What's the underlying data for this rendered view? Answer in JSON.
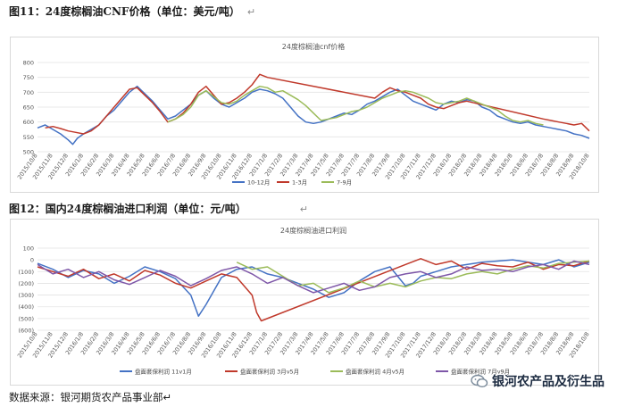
{
  "heading1": "图11：24度棕榈油CNF价格（单位：美元/吨）",
  "heading2": "图12：国内24度棕榈油进口利润（单位：元/吨）",
  "return_mark": "↵",
  "source": "数据来源：银河期货农产品事业部↵",
  "brand": "银河农产品及衍生品",
  "colors": {
    "blue": "#4472c4",
    "red": "#c0392b",
    "green": "#9bbb59",
    "purple": "#7e57a8"
  },
  "chart_data": [
    {
      "type": "line",
      "title": "24度棕榈油cnf价格",
      "ylim": [
        500,
        800
      ],
      "y_ticks": [
        500,
        550,
        600,
        650,
        700,
        750,
        800
      ],
      "x_tick_labels": [
        "2015/10/8",
        "2015/11/8",
        "2015/12/8",
        "2016/1/8",
        "2016/2/8",
        "2016/3/8",
        "2016/4/8",
        "2016/5/8",
        "2016/6/8",
        "2016/7/8",
        "2016/8/8",
        "2016/9/8",
        "2016/10/8",
        "2016/11/8",
        "2016/12/8",
        "2017/1/8",
        "2017/2/8",
        "2017/3/8",
        "2017/4/8",
        "2017/5/8",
        "2017/6/8",
        "2017/7/8",
        "2017/8/8",
        "2017/9/8",
        "2017/10/8",
        "2017/11/8",
        "2017/12/8",
        "2018/1/8",
        "2018/2/8",
        "2018/3/8",
        "2018/4/8",
        "2018/5/8",
        "2018/6/8",
        "2018/7/8",
        "2018/8/8",
        "2018/9/8",
        "2018/10/8"
      ],
      "series": [
        {
          "name": "10-12月",
          "color": "#4472c4",
          "x": [
            0,
            0.5,
            1,
            1.5,
            2,
            2.3,
            2.6,
            3,
            3.5,
            4,
            4.5,
            5,
            5.5,
            6,
            6.5,
            7,
            7.5,
            8,
            8.5,
            9,
            9.5,
            10,
            10.5,
            11,
            11.5,
            12,
            12.5,
            13,
            13.5,
            14,
            14.5,
            15,
            15.5,
            16,
            16.5,
            17,
            17.5,
            18,
            18.5,
            19,
            19.5,
            20,
            20.5,
            21,
            21.5,
            22,
            22.5,
            23,
            23.5,
            24,
            24.5,
            25,
            25.5,
            26,
            26.5,
            27,
            27.5,
            28,
            28.5,
            29,
            29.5,
            30,
            30.5,
            31,
            31.5,
            32,
            32.5,
            33,
            33.5,
            34,
            34.5,
            35,
            35.5,
            36
          ],
          "y": [
            580,
            590,
            575,
            560,
            540,
            525,
            545,
            560,
            575,
            590,
            620,
            640,
            670,
            700,
            720,
            695,
            670,
            640,
            610,
            620,
            640,
            660,
            690,
            705,
            680,
            660,
            650,
            665,
            680,
            700,
            710,
            705,
            695,
            680,
            650,
            620,
            600,
            595,
            600,
            610,
            620,
            630,
            625,
            640,
            660,
            670,
            685,
            700,
            710,
            690,
            670,
            660,
            650,
            640,
            660,
            670,
            665,
            675,
            670,
            650,
            640,
            620,
            610,
            600,
            595,
            600,
            590,
            585,
            580,
            575,
            570,
            560,
            555,
            545
          ]
        },
        {
          "name": "1-3月",
          "color": "#c0392b",
          "x": [
            0.5,
            1,
            1.5,
            2,
            2.5,
            3,
            3.5,
            4,
            4.5,
            5,
            5.5,
            6,
            6.5,
            7,
            7.5,
            8,
            8.5,
            9,
            9.5,
            10,
            10.5,
            11,
            11.5,
            12,
            12.5,
            13,
            13.5,
            14,
            14.5,
            15,
            22,
            22.5,
            23,
            23.5,
            24,
            24.5,
            25,
            25.5,
            26,
            26.5,
            27,
            27.5,
            28,
            33,
            33.5,
            34,
            34.5,
            35,
            35.5,
            36
          ],
          "y": [
            580,
            585,
            578,
            570,
            565,
            560,
            570,
            590,
            620,
            650,
            680,
            710,
            715,
            690,
            665,
            635,
            600,
            610,
            630,
            660,
            700,
            720,
            690,
            660,
            665,
            680,
            700,
            725,
            760,
            750,
            680,
            700,
            715,
            705,
            700,
            690,
            680,
            660,
            650,
            645,
            655,
            665,
            670,
            610,
            605,
            600,
            595,
            590,
            595,
            570
          ]
        },
        {
          "name": "7-9月",
          "color": "#9bbb59",
          "x": [
            8.5,
            9,
            9.5,
            10,
            10.5,
            11,
            11.5,
            12,
            12.5,
            13,
            13.5,
            14,
            14.5,
            15,
            15.5,
            16,
            16.5,
            17,
            17.5,
            18,
            18.5,
            19,
            19.5,
            20,
            20.5,
            21,
            21.5,
            22,
            22.5,
            23,
            23.5,
            24,
            24.5,
            25,
            25.5,
            26,
            26.5,
            27,
            27.5,
            28,
            28.5,
            29,
            29.5,
            30,
            30.5,
            31,
            31.5,
            32,
            32.5,
            33
          ],
          "y": [
            600,
            610,
            625,
            650,
            690,
            705,
            685,
            665,
            660,
            670,
            690,
            705,
            720,
            715,
            700,
            705,
            690,
            675,
            655,
            630,
            605,
            610,
            615,
            625,
            635,
            640,
            650,
            665,
            680,
            690,
            700,
            705,
            700,
            690,
            680,
            665,
            660,
            665,
            670,
            680,
            670,
            660,
            650,
            640,
            620,
            605,
            600,
            605,
            595,
            590
          ]
        }
      ]
    },
    {
      "type": "line",
      "title": "24度棕榈油进口利润",
      "ylim": [
        -600,
        100
      ],
      "y_ticks": [
        100,
        0,
        -100,
        -200,
        -300,
        -400,
        -500,
        -600
      ],
      "y_tick_labels": [
        "100",
        "0",
        "(100)",
        "(200)",
        "(300)",
        "(400)",
        "(500)",
        "(600)"
      ],
      "x_tick_labels": [
        "2015/10/8",
        "2015/11/8",
        "2015/12/8",
        "2016/1/8",
        "2016/2/8",
        "2016/3/8",
        "2016/4/8",
        "2016/5/8",
        "2016/6/8",
        "2016/7/8",
        "2016/8/8",
        "2016/9/8",
        "2016/10/8",
        "2016/11/8",
        "2016/12/8",
        "2017/1/8",
        "2017/2/8",
        "2017/3/8",
        "2017/4/8",
        "2017/5/8",
        "2017/6/8",
        "2017/7/8",
        "2017/8/8",
        "2017/9/8",
        "2017/10/8",
        "2017/11/8",
        "2017/12/8",
        "2018/1/8",
        "2018/2/8",
        "2018/3/8",
        "2018/4/8",
        "2018/5/8",
        "2018/6/8",
        "2018/7/8",
        "2018/8/8",
        "2018/9/8",
        "2018/10/8"
      ],
      "series": [
        {
          "name": "盘面套保利润 11v1月",
          "color": "#4472c4",
          "x": [
            0,
            1,
            2,
            3,
            4,
            5,
            6,
            7,
            8,
            9,
            10,
            10.5,
            11,
            12,
            13,
            14,
            15,
            16,
            17,
            18,
            19,
            20,
            21,
            22,
            23,
            24,
            24.5,
            25,
            26,
            27,
            28,
            29,
            30,
            31,
            32,
            33,
            34,
            35,
            36
          ],
          "y": [
            -30,
            -80,
            -150,
            -90,
            -120,
            -200,
            -140,
            -60,
            -100,
            -160,
            -300,
            -480,
            -380,
            -150,
            -80,
            -60,
            -120,
            -150,
            -200,
            -250,
            -320,
            -280,
            -180,
            -100,
            -60,
            -220,
            -200,
            -140,
            -100,
            -60,
            -40,
            -20,
            -10,
            0,
            -20,
            -40,
            0,
            -60,
            -20
          ]
        },
        {
          "name": "盘面套保利润 3月v5月",
          "color": "#c0392b",
          "x": [
            0,
            1,
            2,
            3,
            4,
            5,
            6,
            7,
            8,
            9,
            10,
            11,
            12,
            13,
            14,
            14.3,
            14.6,
            24,
            25,
            26,
            27,
            28,
            29,
            30,
            31,
            32,
            33,
            34,
            35,
            36
          ],
          "y": [
            -60,
            -100,
            -140,
            -80,
            -160,
            -120,
            -180,
            -90,
            -130,
            -200,
            -240,
            -180,
            -120,
            -150,
            -300,
            -450,
            -520,
            -40,
            10,
            -40,
            -10,
            -80,
            -30,
            -50,
            -60,
            -20,
            -80,
            -40,
            -50,
            -10
          ]
        },
        {
          "name": "盘面套保利润 4月v5月",
          "color": "#9bbb59",
          "x": [
            13,
            14,
            15,
            16,
            17,
            18,
            19,
            20,
            21,
            22,
            23,
            24,
            25,
            26,
            27,
            28,
            29,
            30,
            31,
            32,
            33,
            34,
            35,
            36
          ],
          "y": [
            -20,
            -80,
            -60,
            -140,
            -220,
            -200,
            -280,
            -240,
            -180,
            -230,
            -200,
            -230,
            -180,
            -150,
            -160,
            -120,
            -100,
            -120,
            -80,
            -50,
            -70,
            -30,
            -20,
            -10
          ]
        },
        {
          "name": "盘面套保利润 7月v9月",
          "color": "#7e57a8",
          "x": [
            0,
            1,
            2,
            3,
            4,
            5,
            6,
            7,
            8,
            9,
            10,
            11,
            12,
            13,
            14,
            15,
            16,
            17,
            18,
            19,
            20,
            21,
            22,
            23,
            24,
            25,
            26,
            27,
            28,
            29,
            30,
            31,
            32,
            33,
            34,
            35,
            36
          ],
          "y": [
            -40,
            -120,
            -80,
            -150,
            -100,
            -170,
            -210,
            -150,
            -90,
            -140,
            -220,
            -160,
            -90,
            -60,
            -120,
            -200,
            -150,
            -220,
            -280,
            -240,
            -200,
            -260,
            -230,
            -150,
            -120,
            -100,
            -150,
            -120,
            -60,
            -90,
            -80,
            -100,
            -60,
            -40,
            -80,
            -10,
            -40
          ]
        }
      ]
    }
  ]
}
